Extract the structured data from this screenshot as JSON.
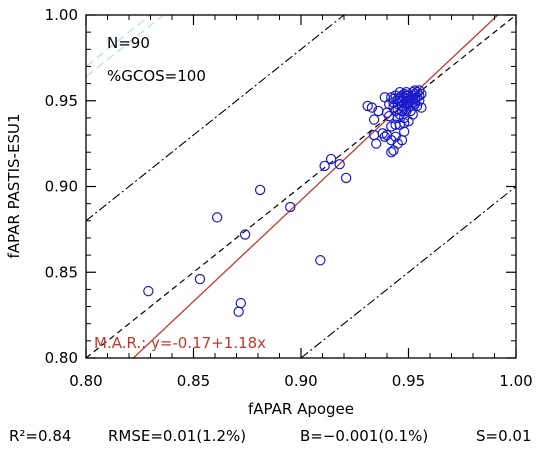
{
  "chart_data": {
    "type": "scatter",
    "xlabel": "fAPAR Apogee",
    "ylabel": "fAPAR PASTIS-ESU1",
    "xlim": [
      0.8,
      1.0
    ],
    "ylim": [
      0.8,
      1.0
    ],
    "xticks": [
      "0.80",
      "0.85",
      "0.90",
      "0.95",
      "1.00"
    ],
    "yticks": [
      "0.80",
      "0.85",
      "0.90",
      "0.95",
      "1.00"
    ],
    "annotations": {
      "n": "N=90",
      "gcos": "%GCOS=100"
    },
    "regression": {
      "label": "M.A.R.: y=-0.17+1.18x",
      "intercept": -0.17,
      "slope": 1.18,
      "color": "#c0392b"
    },
    "reference_lines": [
      {
        "kind": "1:1",
        "style": "dashed"
      },
      {
        "kind": "+0.1",
        "style": "dash-dot"
      },
      {
        "kind": "-0.1",
        "style": "dash-dot"
      }
    ],
    "marker_color": "#1a1acd",
    "points": [
      [
        0.829,
        0.839
      ],
      [
        0.853,
        0.846
      ],
      [
        0.861,
        0.882
      ],
      [
        0.871,
        0.827
      ],
      [
        0.872,
        0.832
      ],
      [
        0.874,
        0.872
      ],
      [
        0.881,
        0.898
      ],
      [
        0.895,
        0.888
      ],
      [
        0.909,
        0.857
      ],
      [
        0.911,
        0.912
      ],
      [
        0.914,
        0.916
      ],
      [
        0.918,
        0.913
      ],
      [
        0.921,
        0.905
      ],
      [
        0.931,
        0.947
      ],
      [
        0.933,
        0.946
      ],
      [
        0.934,
        0.939
      ],
      [
        0.934,
        0.93
      ],
      [
        0.935,
        0.925
      ],
      [
        0.936,
        0.944
      ],
      [
        0.938,
        0.931
      ],
      [
        0.939,
        0.952
      ],
      [
        0.939,
        0.929
      ],
      [
        0.94,
        0.943
      ],
      [
        0.94,
        0.93
      ],
      [
        0.941,
        0.948
      ],
      [
        0.941,
        0.941
      ],
      [
        0.942,
        0.927
      ],
      [
        0.942,
        0.92
      ],
      [
        0.942,
        0.952
      ],
      [
        0.943,
        0.946
      ],
      [
        0.943,
        0.951
      ],
      [
        0.943,
        0.921
      ],
      [
        0.944,
        0.929
      ],
      [
        0.944,
        0.944
      ],
      [
        0.944,
        0.953
      ],
      [
        0.945,
        0.948
      ],
      [
        0.945,
        0.945
      ],
      [
        0.945,
        0.94
      ],
      [
        0.945,
        0.925
      ],
      [
        0.946,
        0.95
      ],
      [
        0.946,
        0.955
      ],
      [
        0.946,
        0.942
      ],
      [
        0.946,
        0.952
      ],
      [
        0.947,
        0.947
      ],
      [
        0.947,
        0.95
      ],
      [
        0.947,
        0.944
      ],
      [
        0.947,
        0.927
      ],
      [
        0.948,
        0.952
      ],
      [
        0.948,
        0.954
      ],
      [
        0.948,
        0.946
      ],
      [
        0.948,
        0.94
      ],
      [
        0.948,
        0.932
      ],
      [
        0.949,
        0.949
      ],
      [
        0.949,
        0.944
      ],
      [
        0.949,
        0.951
      ],
      [
        0.949,
        0.955
      ],
      [
        0.95,
        0.948
      ],
      [
        0.95,
        0.953
      ],
      [
        0.95,
        0.946
      ],
      [
        0.95,
        0.938
      ],
      [
        0.951,
        0.952
      ],
      [
        0.951,
        0.95
      ],
      [
        0.951,
        0.944
      ],
      [
        0.951,
        0.947
      ],
      [
        0.952,
        0.953
      ],
      [
        0.952,
        0.955
      ],
      [
        0.952,
        0.949
      ],
      [
        0.952,
        0.942
      ],
      [
        0.953,
        0.951
      ],
      [
        0.953,
        0.954
      ],
      [
        0.953,
        0.956
      ],
      [
        0.953,
        0.948
      ],
      [
        0.954,
        0.952
      ],
      [
        0.954,
        0.947
      ],
      [
        0.954,
        0.955
      ],
      [
        0.955,
        0.953
      ],
      [
        0.955,
        0.95
      ],
      [
        0.955,
        0.956
      ],
      [
        0.956,
        0.954
      ],
      [
        0.956,
        0.946
      ],
      [
        0.944,
        0.936
      ],
      [
        0.946,
        0.936
      ],
      [
        0.948,
        0.937
      ],
      [
        0.942,
        0.935
      ],
      [
        0.95,
        0.949
      ],
      [
        0.947,
        0.953
      ],
      [
        0.945,
        0.951
      ],
      [
        0.952,
        0.951
      ],
      [
        0.943,
        0.949
      ],
      [
        0.949,
        0.953
      ]
    ]
  },
  "stats": {
    "r2": "R²=0.84",
    "rmse": "RMSE=0.01(1.2%)",
    "bias": "B=−0.001(0.1%)",
    "s": "S=0.01"
  }
}
